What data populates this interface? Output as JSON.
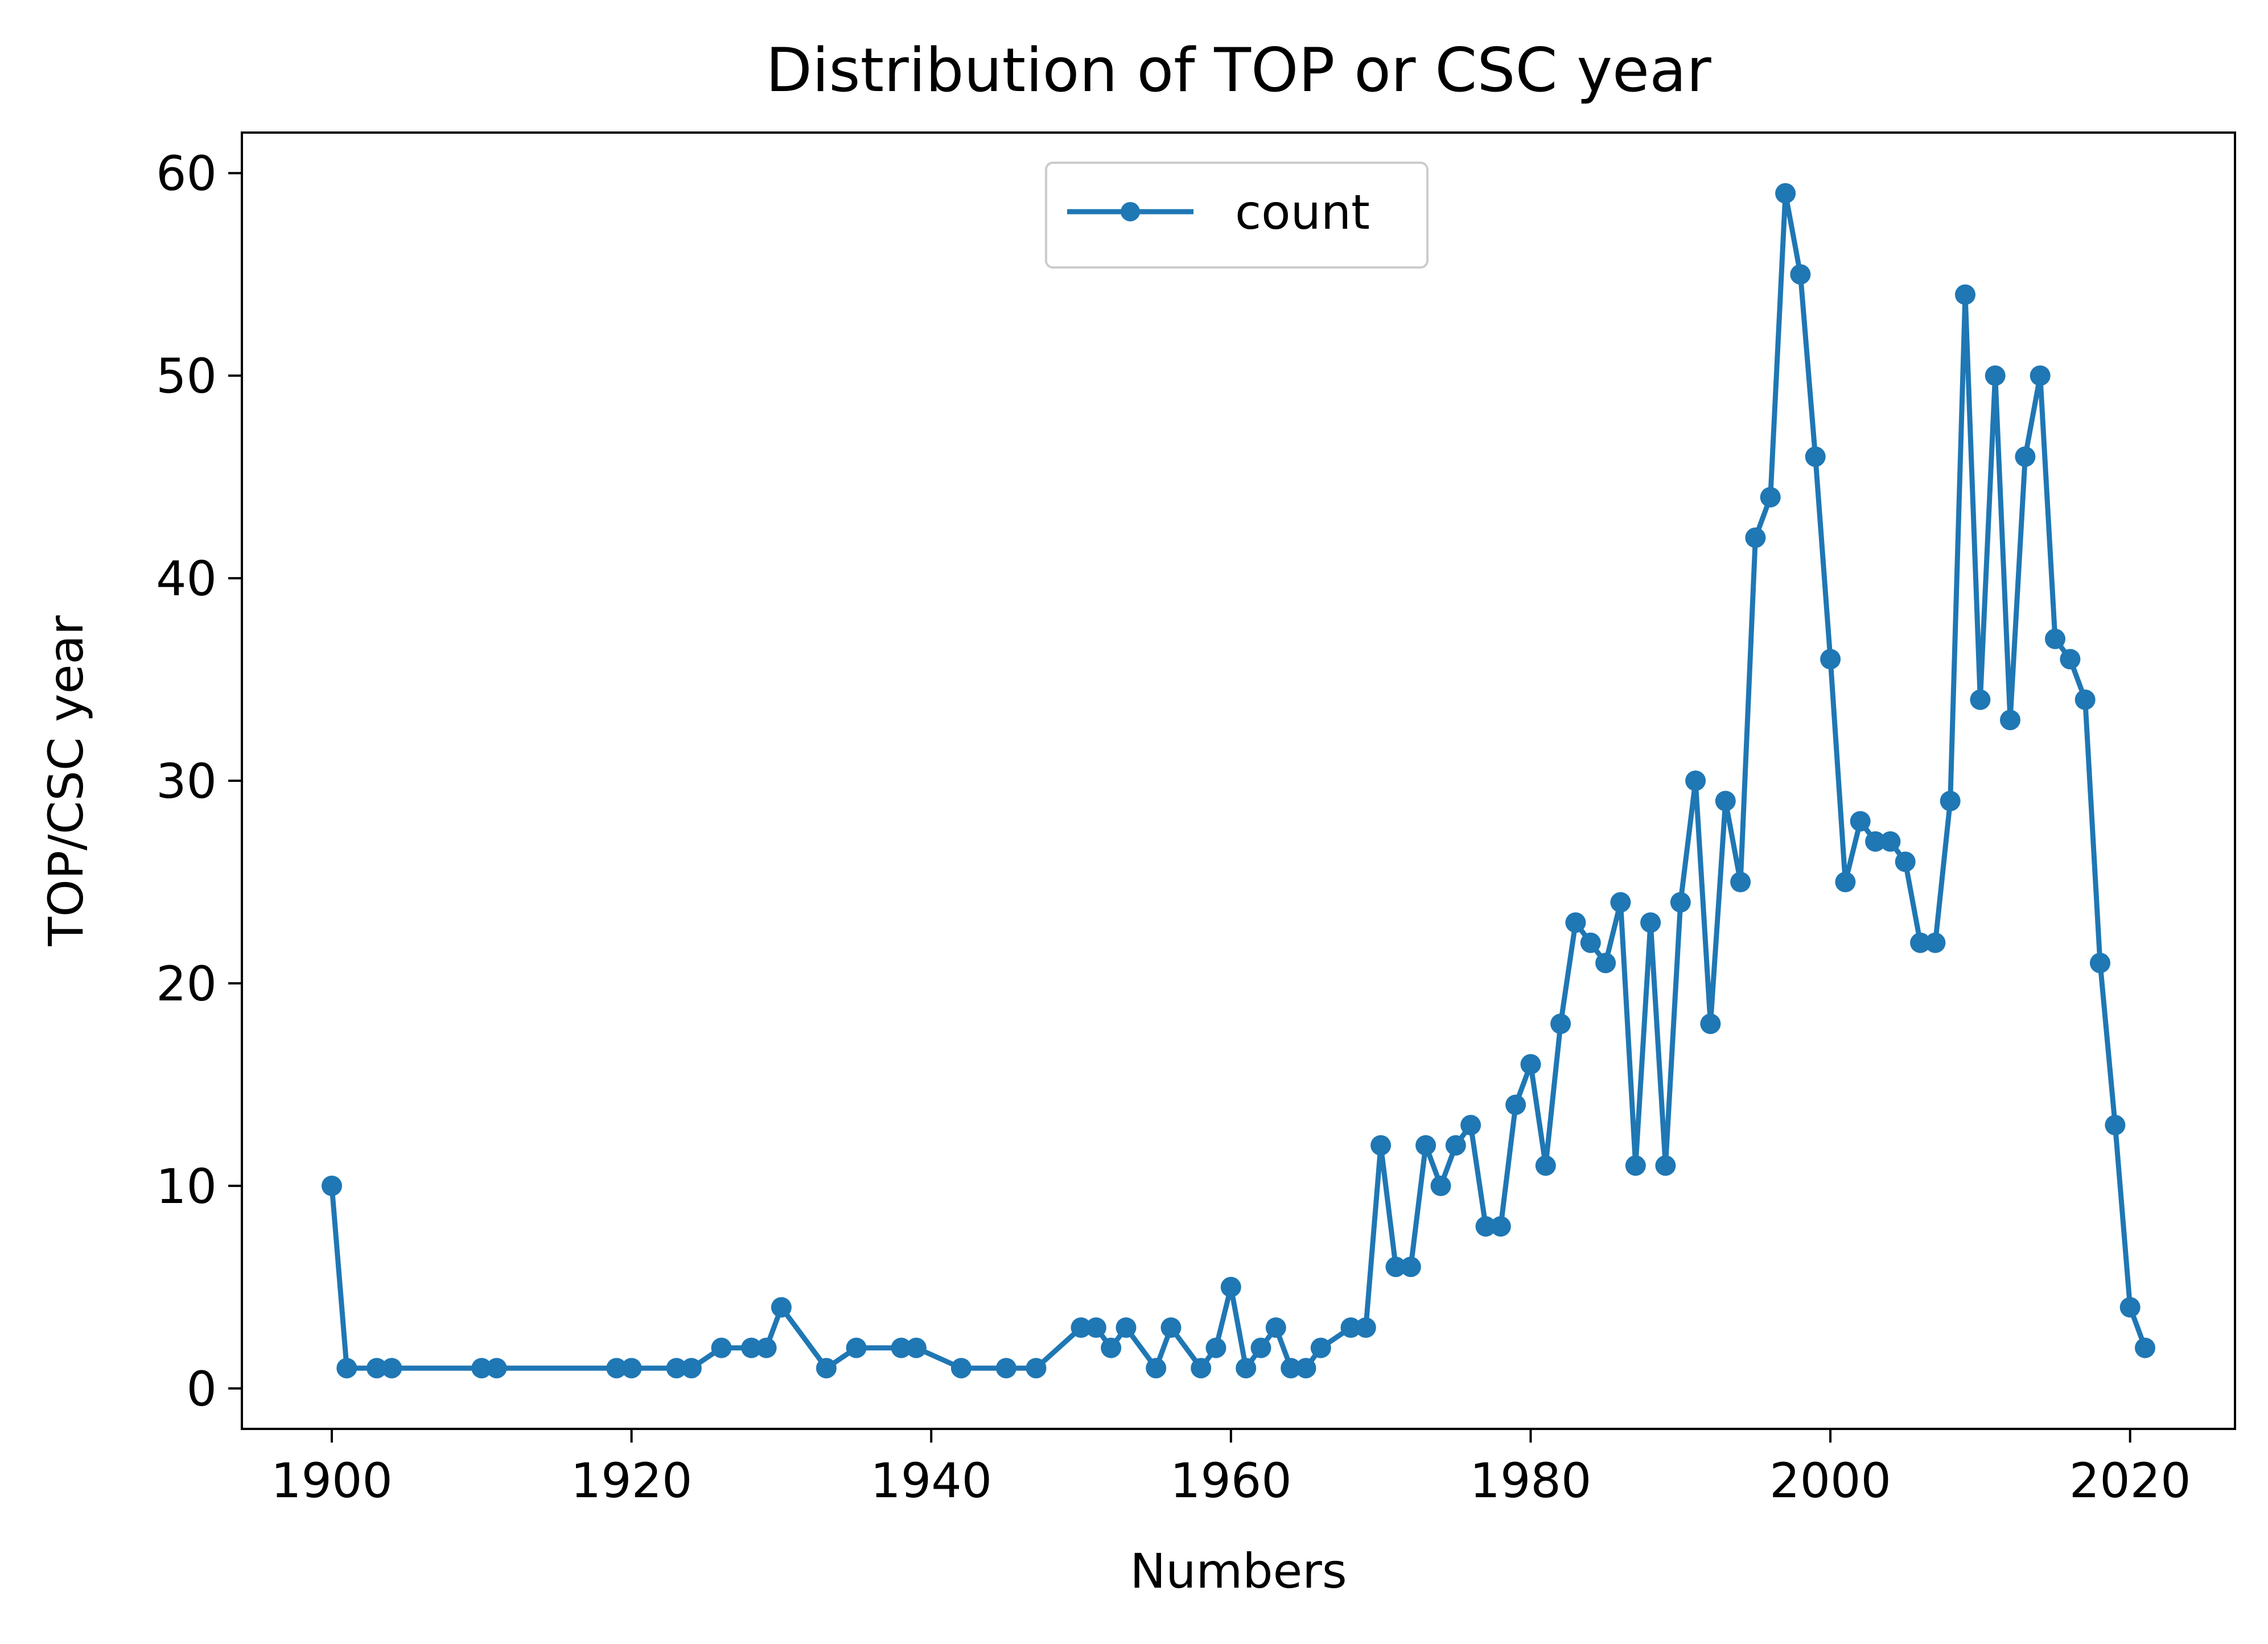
{
  "chart_data": {
    "type": "line",
    "title": "Distribution of TOP or CSC year",
    "xlabel": "Numbers",
    "ylabel": "TOP/CSC year",
    "xlim": [
      1894,
      2027
    ],
    "ylim": [
      -2,
      62
    ],
    "xticks": [
      1900,
      1920,
      1940,
      1960,
      1980,
      2000,
      2020
    ],
    "yticks": [
      0,
      10,
      20,
      30,
      40,
      50,
      60
    ],
    "grid": false,
    "legend_position": "upper center",
    "series": [
      {
        "name": "count",
        "color": "#1f77b4",
        "marker": "circle",
        "x": [
          1900,
          1901,
          1903,
          1904,
          1910,
          1911,
          1919,
          1920,
          1923,
          1924,
          1926,
          1928,
          1929,
          1930,
          1933,
          1935,
          1938,
          1939,
          1942,
          1945,
          1947,
          1950,
          1951,
          1952,
          1953,
          1955,
          1956,
          1958,
          1959,
          1960,
          1961,
          1962,
          1963,
          1964,
          1965,
          1966,
          1968,
          1969,
          1970,
          1971,
          1972,
          1973,
          1974,
          1975,
          1976,
          1977,
          1978,
          1979,
          1980,
          1981,
          1982,
          1983,
          1984,
          1985,
          1986,
          1987,
          1988,
          1989,
          1990,
          1991,
          1992,
          1993,
          1994,
          1995,
          1996,
          1997,
          1998,
          1999,
          2000,
          2001,
          2002,
          2003,
          2004,
          2005,
          2006,
          2007,
          2008,
          2009,
          2010,
          2011,
          2012,
          2013,
          2014,
          2015,
          2016,
          2017,
          2018,
          2019,
          2020,
          2021
        ],
        "y": [
          10,
          1,
          1,
          1,
          1,
          1,
          1,
          1,
          1,
          1,
          2,
          2,
          2,
          4,
          1,
          2,
          2,
          2,
          1,
          1,
          1,
          3,
          3,
          2,
          3,
          1,
          3,
          1,
          2,
          5,
          1,
          2,
          3,
          1,
          1,
          2,
          3,
          3,
          12,
          6,
          6,
          12,
          10,
          12,
          13,
          8,
          8,
          14,
          16,
          11,
          18,
          23,
          22,
          21,
          24,
          11,
          23,
          11,
          24,
          30,
          18,
          29,
          25,
          42,
          44,
          59,
          55,
          46,
          36,
          25,
          28,
          27,
          27,
          26,
          22,
          22,
          29,
          54,
          34,
          50,
          33,
          46,
          50,
          37,
          36,
          34,
          21,
          13,
          4,
          2
        ]
      }
    ]
  }
}
